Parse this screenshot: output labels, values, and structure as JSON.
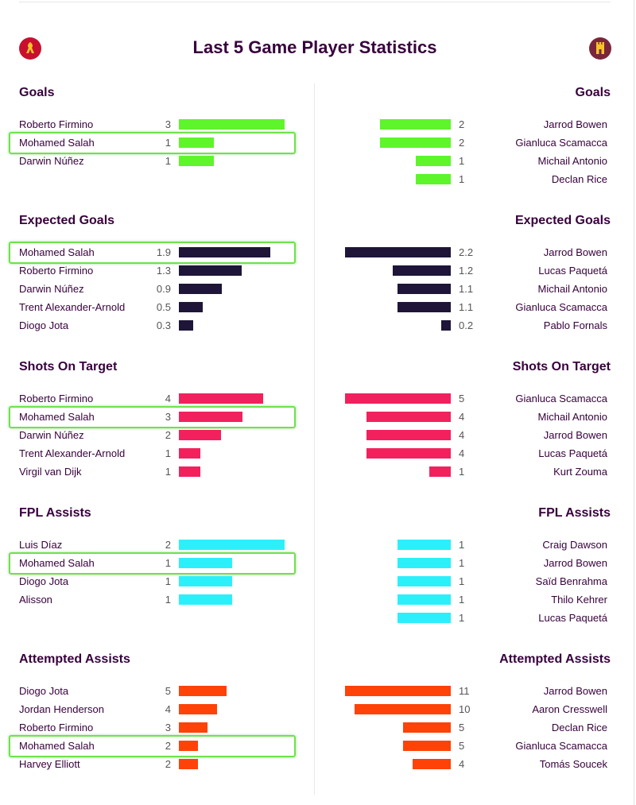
{
  "title": "Last 5 Game Player Statistics",
  "team_logos": {
    "left": {
      "icon": "liverpool-crest-icon",
      "color": "#c8102e"
    },
    "right": {
      "icon": "west-ham-crest-icon",
      "color": "#7a263a"
    }
  },
  "sections": [
    {
      "title": "Goals",
      "color": "#5ef52a",
      "max": 3,
      "left": [
        {
          "name": "Roberto Firmino",
          "value": "3",
          "num": 3
        },
        {
          "name": "Mohamed Salah",
          "value": "1",
          "num": 1,
          "highlighted": true
        },
        {
          "name": "Darwin Núñez",
          "value": "1",
          "num": 1
        }
      ],
      "right": [
        {
          "name": "Jarrod Bowen",
          "value": "2",
          "num": 2
        },
        {
          "name": "Gianluca Scamacca",
          "value": "2",
          "num": 2
        },
        {
          "name": "Michail Antonio",
          "value": "1",
          "num": 1
        },
        {
          "name": "Declan Rice",
          "value": "1",
          "num": 1
        }
      ]
    },
    {
      "title": "Expected Goals",
      "color": "#1e1538",
      "max": 2.2,
      "left": [
        {
          "name": "Mohamed Salah",
          "value": "1.9",
          "num": 1.9,
          "highlighted": true
        },
        {
          "name": "Roberto Firmino",
          "value": "1.3",
          "num": 1.3
        },
        {
          "name": "Darwin Núñez",
          "value": "0.9",
          "num": 0.9
        },
        {
          "name": "Trent Alexander-Arnold",
          "value": "0.5",
          "num": 0.5
        },
        {
          "name": "Diogo Jota",
          "value": "0.3",
          "num": 0.3
        }
      ],
      "right": [
        {
          "name": "Jarrod Bowen",
          "value": "2.2",
          "num": 2.2
        },
        {
          "name": "Lucas Paquetá",
          "value": "1.2",
          "num": 1.2
        },
        {
          "name": "Michail Antonio",
          "value": "1.1",
          "num": 1.1
        },
        {
          "name": "Gianluca Scamacca",
          "value": "1.1",
          "num": 1.1
        },
        {
          "name": "Pablo Fornals",
          "value": "0.2",
          "num": 0.2
        }
      ]
    },
    {
      "title": "Shots On Target",
      "color": "#f2215e",
      "max": 5,
      "left": [
        {
          "name": "Roberto Firmino",
          "value": "4",
          "num": 4
        },
        {
          "name": "Mohamed Salah",
          "value": "3",
          "num": 3,
          "highlighted": true
        },
        {
          "name": "Darwin Núñez",
          "value": "2",
          "num": 2
        },
        {
          "name": "Trent Alexander-Arnold",
          "value": "1",
          "num": 1
        },
        {
          "name": "Virgil van Dijk",
          "value": "1",
          "num": 1
        }
      ],
      "right": [
        {
          "name": "Gianluca Scamacca",
          "value": "5",
          "num": 5
        },
        {
          "name": "Michail Antonio",
          "value": "4",
          "num": 4
        },
        {
          "name": "Jarrod Bowen",
          "value": "4",
          "num": 4
        },
        {
          "name": "Lucas Paquetá",
          "value": "4",
          "num": 4
        },
        {
          "name": "Kurt Zouma",
          "value": "1",
          "num": 1
        }
      ]
    },
    {
      "title": "FPL Assists",
      "color": "#2bf0fa",
      "max": 2,
      "left": [
        {
          "name": "Luis Díaz",
          "value": "2",
          "num": 2
        },
        {
          "name": "Mohamed Salah",
          "value": "1",
          "num": 1,
          "highlighted": true
        },
        {
          "name": "Diogo Jota",
          "value": "1",
          "num": 1
        },
        {
          "name": "Alisson",
          "value": "1",
          "num": 1
        }
      ],
      "right": [
        {
          "name": "Craig Dawson",
          "value": "1",
          "num": 1
        },
        {
          "name": "Jarrod Bowen",
          "value": "1",
          "num": 1
        },
        {
          "name": "Saïd Benrahma",
          "value": "1",
          "num": 1
        },
        {
          "name": "Thilo Kehrer",
          "value": "1",
          "num": 1
        },
        {
          "name": "Lucas Paquetá",
          "value": "1",
          "num": 1
        }
      ]
    },
    {
      "title": "Attempted Assists",
      "color": "#ff4207",
      "max": 11,
      "left": [
        {
          "name": "Diogo Jota",
          "value": "5",
          "num": 5
        },
        {
          "name": "Jordan Henderson",
          "value": "4",
          "num": 4
        },
        {
          "name": "Roberto Firmino",
          "value": "3",
          "num": 3
        },
        {
          "name": "Mohamed Salah",
          "value": "2",
          "num": 2,
          "highlighted": true
        },
        {
          "name": "Harvey Elliott",
          "value": "2",
          "num": 2
        }
      ],
      "right": [
        {
          "name": "Jarrod Bowen",
          "value": "11",
          "num": 11
        },
        {
          "name": "Aaron Cresswell",
          "value": "10",
          "num": 10
        },
        {
          "name": "Declan Rice",
          "value": "5",
          "num": 5
        },
        {
          "name": "Gianluca Scamacca",
          "value": "5",
          "num": 5
        },
        {
          "name": "Tomás Soucek",
          "value": "4",
          "num": 4
        }
      ]
    }
  ]
}
